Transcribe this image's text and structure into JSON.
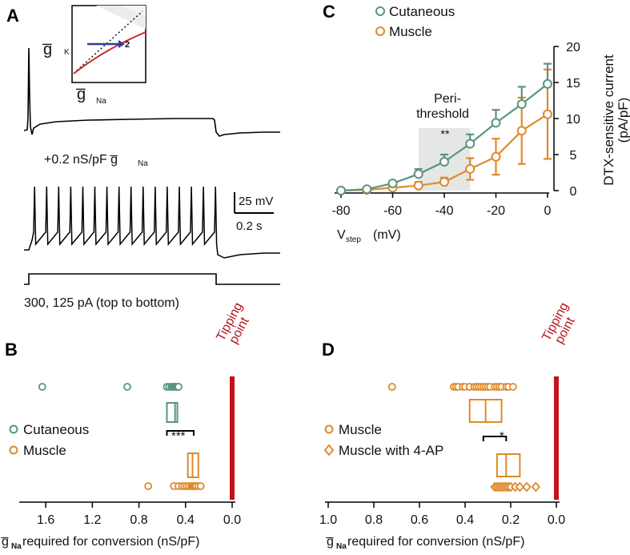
{
  "colors": {
    "cutaneous": "#5b9480",
    "muscle": "#de8a2a",
    "tipping": "#c4121c",
    "inset_red": "#d0232a",
    "inset_blue": "#2f3d9c",
    "shade": "#e5e7e5"
  },
  "panelA": {
    "letter": "A",
    "inset_y_label": "g̅",
    "inset_y_sub": "K",
    "inset_x_label": "g̅",
    "inset_x_sub": "Na",
    "inset_arrow_label": "2",
    "gna_label": "+0.2 nS/pF g̅",
    "gna_sub": "Na",
    "scale_mv": "25 mV",
    "scale_s": "0.2 s",
    "stim_label": "300, 125 pA (top to bottom)"
  },
  "panelC": {
    "letter": "C",
    "legend": [
      "Cutaneous",
      "Muscle"
    ],
    "shade_title_1": "Peri-",
    "shade_title_2": "threshold",
    "sig": "**",
    "ylabel_1": "DTX-sensitive current",
    "ylabel_2": "(pA/pF)",
    "xlabel_main": "V",
    "xlabel_sub": "step",
    "xlabel_unit": "(mV)",
    "xticks": [
      "-80",
      "-60",
      "-40",
      "-20",
      "0"
    ],
    "yticks": [
      "0",
      "5",
      "10",
      "15",
      "20"
    ]
  },
  "panelB": {
    "letter": "B",
    "tipping_1": "Tipping",
    "tipping_2": "point",
    "legend": [
      "Cutaneous",
      "Muscle"
    ],
    "sig": "***",
    "xticks": [
      "1.6",
      "1.2",
      "0.8",
      "0.4",
      "0.0"
    ],
    "xlabel_main": "g̅",
    "xlabel_sub": "Na",
    "xlabel_rest": " required for conversion (nS/pF)"
  },
  "panelD": {
    "letter": "D",
    "tipping_1": "Tipping",
    "tipping_2": "point",
    "legend": [
      "Muscle",
      "Muscle with 4-AP"
    ],
    "sig": "*",
    "xticks": [
      "1.0",
      "0.8",
      "0.6",
      "0.4",
      "0.2",
      "0.0"
    ],
    "xlabel_main": "g̅",
    "xlabel_sub": "Na",
    "xlabel_rest": " required for conversion (nS/pF)"
  },
  "chart_data": [
    {
      "type": "line",
      "panel": "C",
      "x": [
        -80,
        -70,
        -60,
        -50,
        -40,
        -30,
        -20,
        -10,
        0
      ],
      "xlim": [
        -82,
        0
      ],
      "ylim": [
        0,
        20
      ],
      "shaded_region": [
        -50,
        -30
      ],
      "series": [
        {
          "name": "Cutaneous",
          "values": [
            0,
            0.2,
            1.0,
            2.3,
            4.0,
            6.5,
            9.4,
            12.0,
            14.8
          ],
          "err": [
            0,
            0.1,
            0.3,
            0.7,
            1.0,
            1.3,
            1.8,
            2.4,
            2.8
          ]
        },
        {
          "name": "Muscle",
          "values": [
            0,
            0.1,
            0.4,
            0.7,
            1.2,
            3.0,
            4.7,
            8.3,
            10.6
          ],
          "err": [
            0,
            0.1,
            0.3,
            0.5,
            0.6,
            1.5,
            2.5,
            4.6,
            6.2
          ]
        }
      ]
    },
    {
      "type": "scatter",
      "panel": "B",
      "xlim": [
        1.8,
        0.0
      ],
      "series": [
        {
          "name": "Cutaneous",
          "points": [
            1.63,
            0.9,
            0.56,
            0.54,
            0.52,
            0.51,
            0.5,
            0.49,
            0.48,
            0.47,
            0.46
          ],
          "box": {
            "q1": 0.47,
            "median": 0.49,
            "q3": 0.56
          }
        },
        {
          "name": "Muscle",
          "points": [
            0.72,
            0.5,
            0.46,
            0.43,
            0.41,
            0.39,
            0.37,
            0.35,
            0.34,
            0.33,
            0.32,
            0.31,
            0.29,
            0.27
          ],
          "box": {
            "q1": 0.29,
            "median": 0.34,
            "q3": 0.38
          }
        }
      ],
      "tipping_point": 0.0
    },
    {
      "type": "scatter",
      "panel": "D",
      "xlim": [
        1.0,
        0.0
      ],
      "series": [
        {
          "name": "Muscle",
          "points": [
            0.72,
            0.45,
            0.44,
            0.43,
            0.41,
            0.4,
            0.38,
            0.36,
            0.35,
            0.34,
            0.33,
            0.32,
            0.31,
            0.3,
            0.29,
            0.27,
            0.26,
            0.25,
            0.24,
            0.22,
            0.21,
            0.19
          ],
          "box": {
            "q1": 0.24,
            "median": 0.31,
            "q3": 0.38
          }
        },
        {
          "name": "Muscle with 4-AP",
          "points": [
            0.27,
            0.26,
            0.25,
            0.24,
            0.23,
            0.22,
            0.21,
            0.2,
            0.18,
            0.16,
            0.13,
            0.09
          ],
          "box": {
            "q1": 0.16,
            "median": 0.22,
            "q3": 0.26
          }
        }
      ],
      "tipping_point": 0.0
    }
  ]
}
